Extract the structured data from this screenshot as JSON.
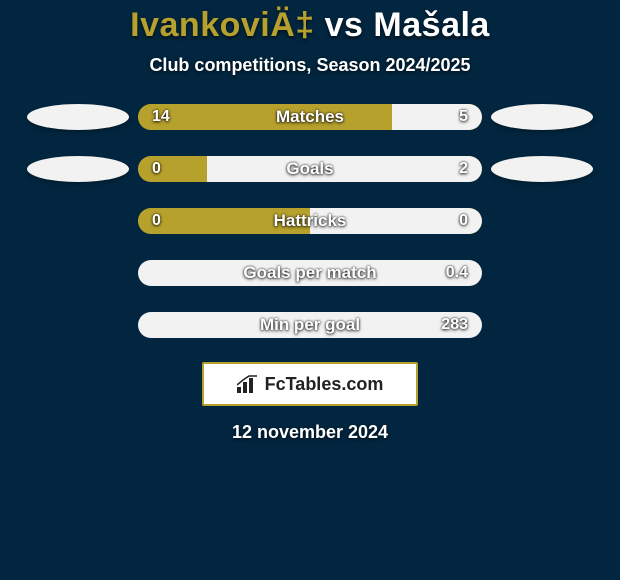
{
  "background_color": "#02263f",
  "title": {
    "left_name": "IvankoviÄ‡",
    "vs": " vs ",
    "right_name": "Mašala",
    "left_color": "#b7a12d",
    "right_color": "#ffffff"
  },
  "subtitle": "Club competitions, Season 2024/2025",
  "left_color": "#b7a12d",
  "right_color": "#f2f2f2",
  "ellipse_left_color": "#f2f2f2",
  "ellipse_right_color": "#f2f2f2",
  "stats": [
    {
      "label": "Matches",
      "left_val": "14",
      "right_val": "5",
      "left_pct": 73.7,
      "right_pct": 26.3,
      "bg": "#b7a12d",
      "show_ellipses": true
    },
    {
      "label": "Goals",
      "left_val": "0",
      "right_val": "2",
      "left_pct": 20.0,
      "right_pct": 80.0,
      "bg": "#b7a12d",
      "show_ellipses": true
    },
    {
      "label": "Hattricks",
      "left_val": "0",
      "right_val": "0",
      "left_pct": 50.0,
      "right_pct": 50.0,
      "bg": "#b7a12d",
      "show_ellipses": false
    },
    {
      "label": "Goals per match",
      "left_val": "",
      "right_val": "0.4",
      "left_pct": 0.0,
      "right_pct": 100.0,
      "bg": "#f2f2f2",
      "show_ellipses": false
    },
    {
      "label": "Min per goal",
      "left_val": "",
      "right_val": "283",
      "left_pct": 0.0,
      "right_pct": 100.0,
      "bg": "#f2f2f2",
      "show_ellipses": false
    }
  ],
  "badge": {
    "text": "FcTables.com",
    "bg": "#ffffff",
    "border": "#b7a12d"
  },
  "date": "12 november 2024",
  "bar_track_color": "#b7a12d"
}
